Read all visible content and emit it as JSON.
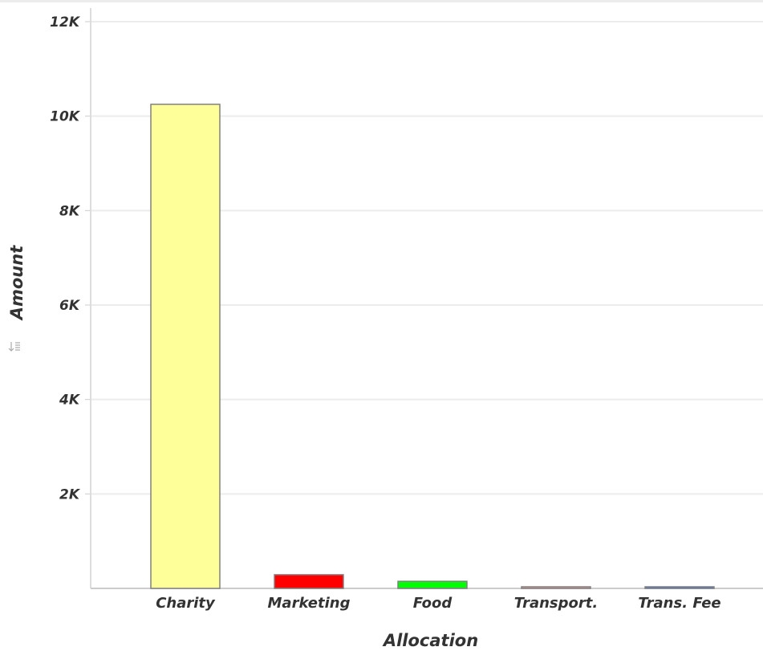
{
  "chart_data": {
    "type": "bar",
    "categories": [
      "Charity",
      "Marketing",
      "Food",
      "Transport.",
      "Trans. Fee"
    ],
    "values": [
      10250,
      290,
      150,
      30,
      25
    ],
    "colors": [
      "#ffff99",
      "#ff0000",
      "#00ff00",
      "#ff9999",
      "#3366ff"
    ],
    "xlabel": "Allocation",
    "ylabel": "Amount",
    "ylim": [
      0,
      12000
    ],
    "yticks": [
      {
        "value": 2000,
        "label": "2K"
      },
      {
        "value": 4000,
        "label": "4K"
      },
      {
        "value": 6000,
        "label": "6K"
      },
      {
        "value": 8000,
        "label": "8K"
      },
      {
        "value": 10000,
        "label": "10K"
      },
      {
        "value": 12000,
        "label": "12K"
      }
    ],
    "grid": true,
    "legend": "none"
  },
  "icons": {
    "sort": "sort-icon"
  }
}
